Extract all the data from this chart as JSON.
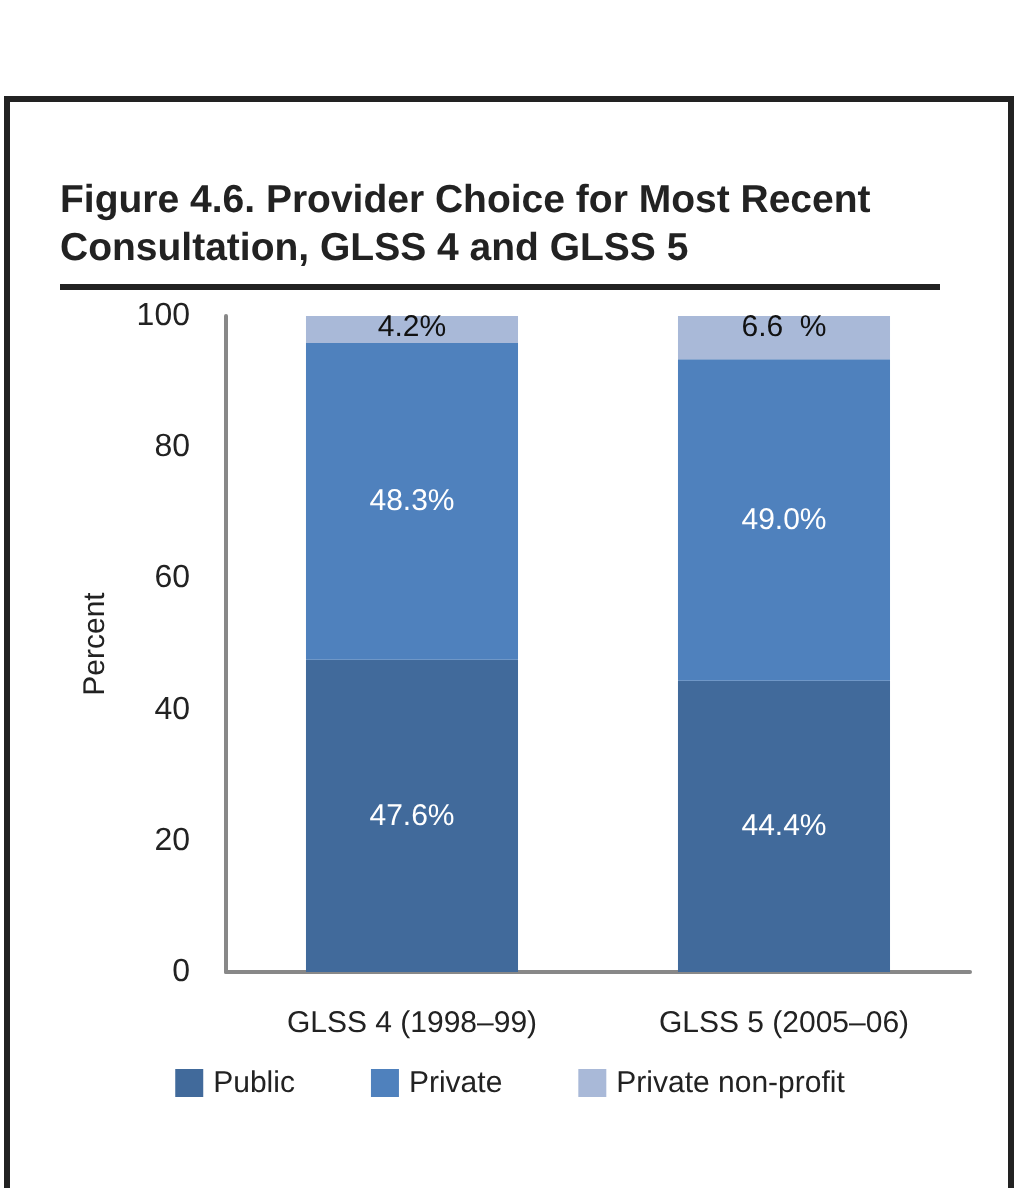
{
  "chart_data": {
    "type": "bar",
    "title": "Figure 4.6. Provider Choice for Most Recent Consultation, GLSS 4 and GLSS 5",
    "ylabel": "Percent",
    "categories": [
      "GLSS 4 (1998–99)",
      "GLSS 5 (2005–06)"
    ],
    "stacked": true,
    "series": [
      {
        "name": "Public",
        "color": "#416a9b",
        "values": [
          47.6,
          44.4
        ],
        "value_labels": [
          "47.6%",
          "44.4%"
        ]
      },
      {
        "name": "Private",
        "color": "#4f81bd",
        "values": [
          48.3,
          49.0
        ],
        "value_labels": [
          "48.3%",
          "49.0%"
        ]
      },
      {
        "name": "Private non-profit",
        "color": "#a9b9d8",
        "values": [
          4.2,
          6.6
        ],
        "value_labels": [
          "4.2%",
          "6.6  %"
        ]
      }
    ],
    "ylim": [
      0,
      100
    ],
    "yticks": [
      0,
      20,
      40,
      60,
      80,
      100
    ],
    "grid": false,
    "legend": "bottom"
  }
}
